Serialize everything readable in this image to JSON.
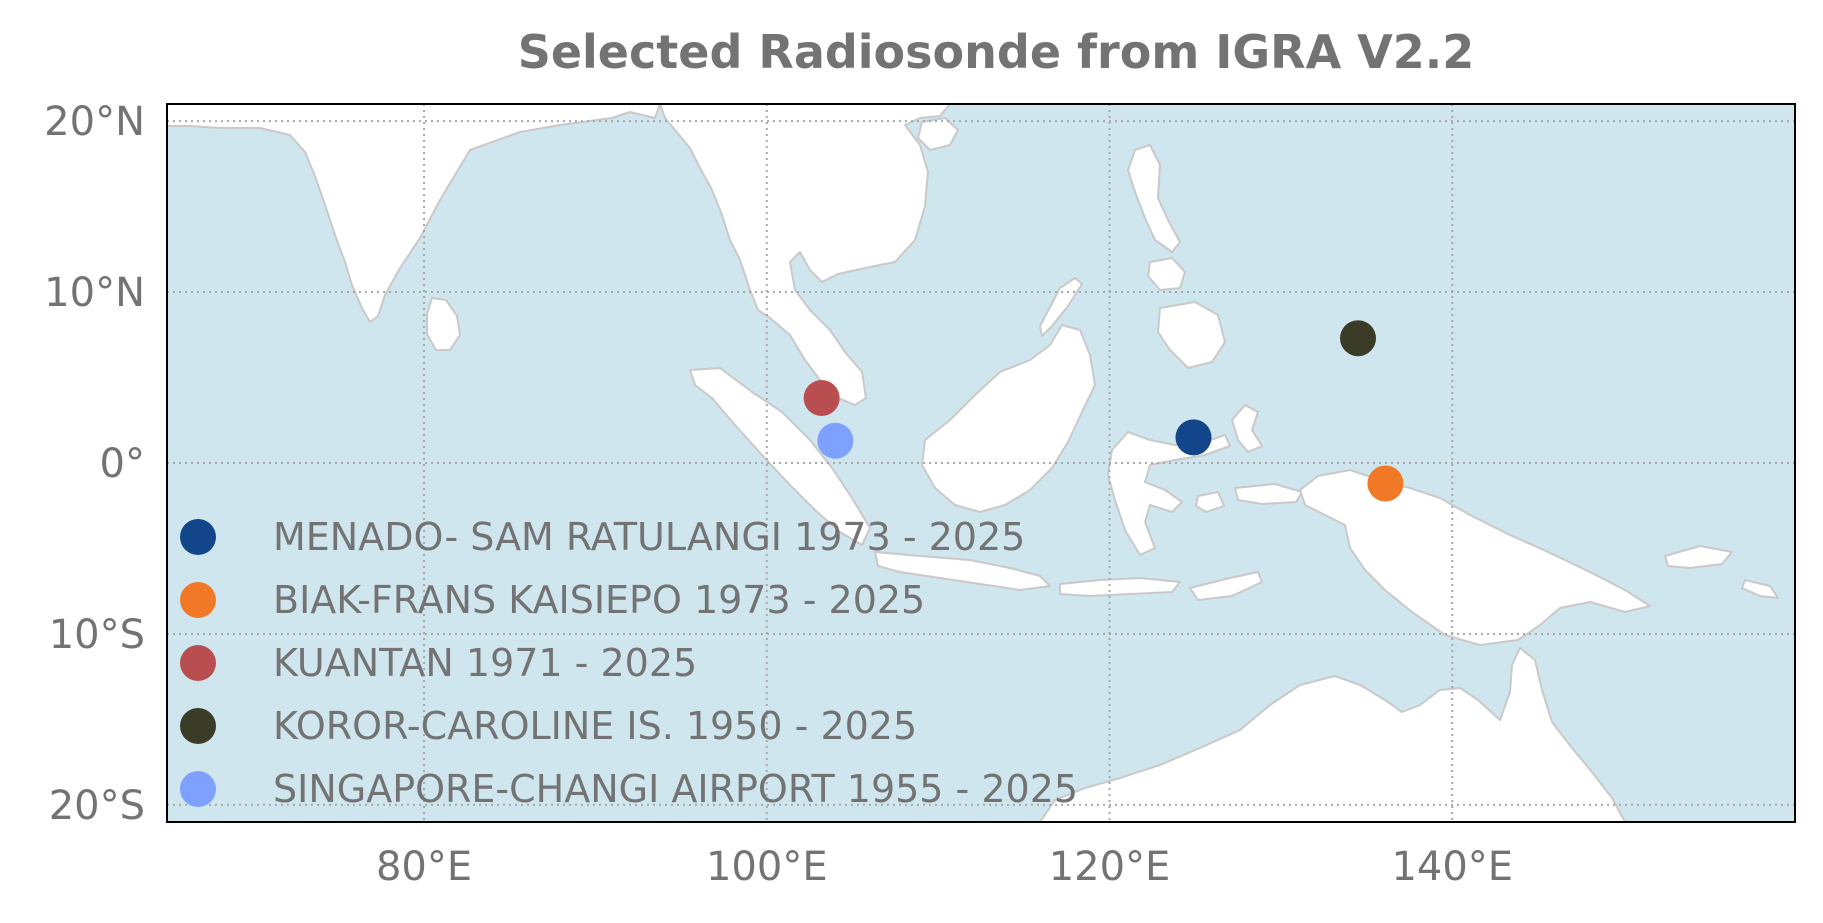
{
  "chart_data": {
    "type": "scatter",
    "title": "Selected Radiosonde from IGRA V2.2",
    "projection": "plate-carree",
    "extent": {
      "lon": [
        65,
        160
      ],
      "lat": [
        -21,
        21
      ]
    },
    "x_ticks": [
      {
        "value": 80,
        "label": "80°E"
      },
      {
        "value": 100,
        "label": "100°E"
      },
      {
        "value": 120,
        "label": "120°E"
      },
      {
        "value": 140,
        "label": "140°E"
      }
    ],
    "y_ticks": [
      {
        "value": 20,
        "label": "20°N"
      },
      {
        "value": 10,
        "label": "10°N"
      },
      {
        "value": 0,
        "label": "0°"
      },
      {
        "value": -10,
        "label": "10°S"
      },
      {
        "value": -20,
        "label": "20°S"
      }
    ],
    "grid": true,
    "grid_style": "dotted",
    "legend_position": "lower-left",
    "colors": {
      "ocean": "#cfe6ef",
      "land": "#ffffff",
      "coast": "#c9c9c9",
      "text": "#737373"
    },
    "series": [
      {
        "name": "MENADO- SAM RATULANGI 1973 - 2025",
        "lon": 124.9,
        "lat": 1.5,
        "color": "#13458a"
      },
      {
        "name": "BIAK-FRANS KAISIEPO 1973 - 2025",
        "lon": 136.1,
        "lat": -1.2,
        "color": "#f07826"
      },
      {
        "name": "KUANTAN 1971 - 2025",
        "lon": 103.2,
        "lat": 3.8,
        "color": "#b84e50"
      },
      {
        "name": "KOROR-CAROLINE IS. 1950 - 2025",
        "lon": 134.5,
        "lat": 7.3,
        "color": "#3a3c28"
      },
      {
        "name": "SINGAPORE-CHANGI AIRPORT 1955 - 2025",
        "lon": 104.0,
        "lat": 1.3,
        "color": "#7ea0ff"
      }
    ]
  }
}
